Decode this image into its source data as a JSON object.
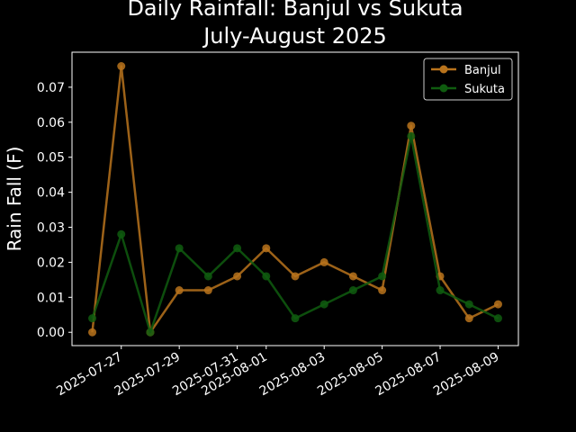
{
  "chart_data": {
    "type": "line",
    "title": "Daily Rainfall: Banjul vs Sukuta",
    "subtitle": "July-August 2025",
    "xlabel": "",
    "ylabel": "Rain Fall (F)",
    "x": [
      "2025-07-26",
      "2025-07-27",
      "2025-07-28",
      "2025-07-29",
      "2025-07-30",
      "2025-07-31",
      "2025-08-01",
      "2025-08-02",
      "2025-08-03",
      "2025-08-04",
      "2025-08-05",
      "2025-08-06",
      "2025-08-07",
      "2025-08-08",
      "2025-08-09"
    ],
    "xticks": [
      "2025-07-27",
      "2025-07-29",
      "2025-07-31",
      "2025-08-01",
      "2025-08-03",
      "2025-08-05",
      "2025-08-07",
      "2025-08-09"
    ],
    "yticks": [
      "0.00",
      "0.01",
      "0.02",
      "0.03",
      "0.04",
      "0.05",
      "0.06",
      "0.07"
    ],
    "ylim": [
      -0.0038,
      0.08
    ],
    "grid": false,
    "legend_position": "upper-right",
    "series": [
      {
        "name": "Banjul",
        "color": "#b8731c",
        "values": [
          0.0,
          0.076,
          0.0,
          0.012,
          0.012,
          0.016,
          0.024,
          0.016,
          0.02,
          0.016,
          0.012,
          0.059,
          0.016,
          0.004,
          0.008
        ]
      },
      {
        "name": "Sukuta",
        "color": "#0f5c0f",
        "values": [
          0.004,
          0.028,
          0.0,
          0.024,
          0.016,
          0.024,
          0.016,
          0.004,
          0.008,
          0.012,
          0.016,
          0.056,
          0.012,
          0.008,
          0.004
        ]
      }
    ]
  }
}
